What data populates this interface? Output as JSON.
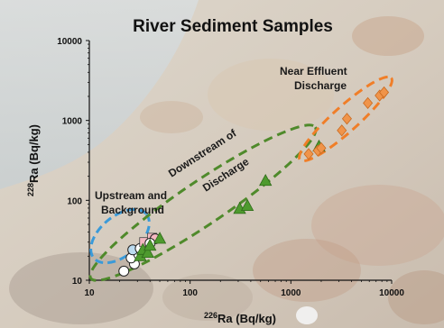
{
  "chart_data": {
    "type": "scatter",
    "title": "River Sediment Samples",
    "xlabel": {
      "sup": "226",
      "text": "Ra (Bq/kg)"
    },
    "ylabel": {
      "sup": "228",
      "text": "Ra (Bq/kg)"
    },
    "xscale": "log",
    "yscale": "log",
    "xlim": [
      10,
      10000
    ],
    "ylim": [
      10,
      10000
    ],
    "xticks": [
      "10",
      "100",
      "1000",
      "10000"
    ],
    "yticks": [
      "10",
      "100",
      "1000",
      "10000"
    ],
    "grid": false,
    "legend": "none",
    "background": "photo of river rocks and water",
    "groups": [
      {
        "label_lines": [
          "Upstream and",
          "Background"
        ],
        "marker": "circle-and-square",
        "color": "#f4b8c1",
        "ellipse_color": "#3a9ad9",
        "points": [
          {
            "x": 22,
            "y": 13,
            "marker": "circle",
            "fill": "#ffffff"
          },
          {
            "x": 28,
            "y": 16,
            "marker": "circle",
            "fill": "#ffffff"
          },
          {
            "x": 26,
            "y": 19,
            "marker": "circle",
            "fill": "#ffffff"
          },
          {
            "x": 31,
            "y": 21,
            "marker": "circle",
            "fill": "#ffffff"
          },
          {
            "x": 27,
            "y": 24,
            "marker": "circle",
            "fill": "#bcdcf0"
          },
          {
            "x": 32,
            "y": 25,
            "marker": "circle",
            "fill": "#ffffff"
          },
          {
            "x": 35,
            "y": 30,
            "marker": "square",
            "fill": "#f4b8c1"
          },
          {
            "x": 42,
            "y": 34,
            "marker": "square",
            "fill": "#f4b8c1"
          },
          {
            "x": 45,
            "y": 33,
            "marker": "circle",
            "fill": "#f4b8c1"
          },
          {
            "x": 40,
            "y": 29,
            "marker": "circle",
            "fill": "#ffffff"
          }
        ]
      },
      {
        "label_lines": [
          "Downstream of",
          "Discharge"
        ],
        "marker": "triangle",
        "color": "#4e9a2e",
        "ellipse_color": "#4f8a2b",
        "points": [
          {
            "x": 32,
            "y": 20
          },
          {
            "x": 34,
            "y": 24
          },
          {
            "x": 38,
            "y": 22
          },
          {
            "x": 40,
            "y": 27
          },
          {
            "x": 50,
            "y": 33
          },
          {
            "x": 310,
            "y": 78
          },
          {
            "x": 370,
            "y": 85
          },
          {
            "x": 560,
            "y": 175
          },
          {
            "x": 1900,
            "y": 470
          }
        ]
      },
      {
        "label_lines": [
          "Near Effluent",
          "Discharge"
        ],
        "marker": "diamond",
        "color": "#f0944a",
        "ellipse_color": "#f07e28",
        "points": [
          {
            "x": 1500,
            "y": 380
          },
          {
            "x": 1850,
            "y": 420
          },
          {
            "x": 2000,
            "y": 450
          },
          {
            "x": 3200,
            "y": 750
          },
          {
            "x": 3600,
            "y": 1050
          },
          {
            "x": 5800,
            "y": 1650
          },
          {
            "x": 7600,
            "y": 2050
          },
          {
            "x": 8400,
            "y": 2250
          }
        ]
      }
    ]
  }
}
